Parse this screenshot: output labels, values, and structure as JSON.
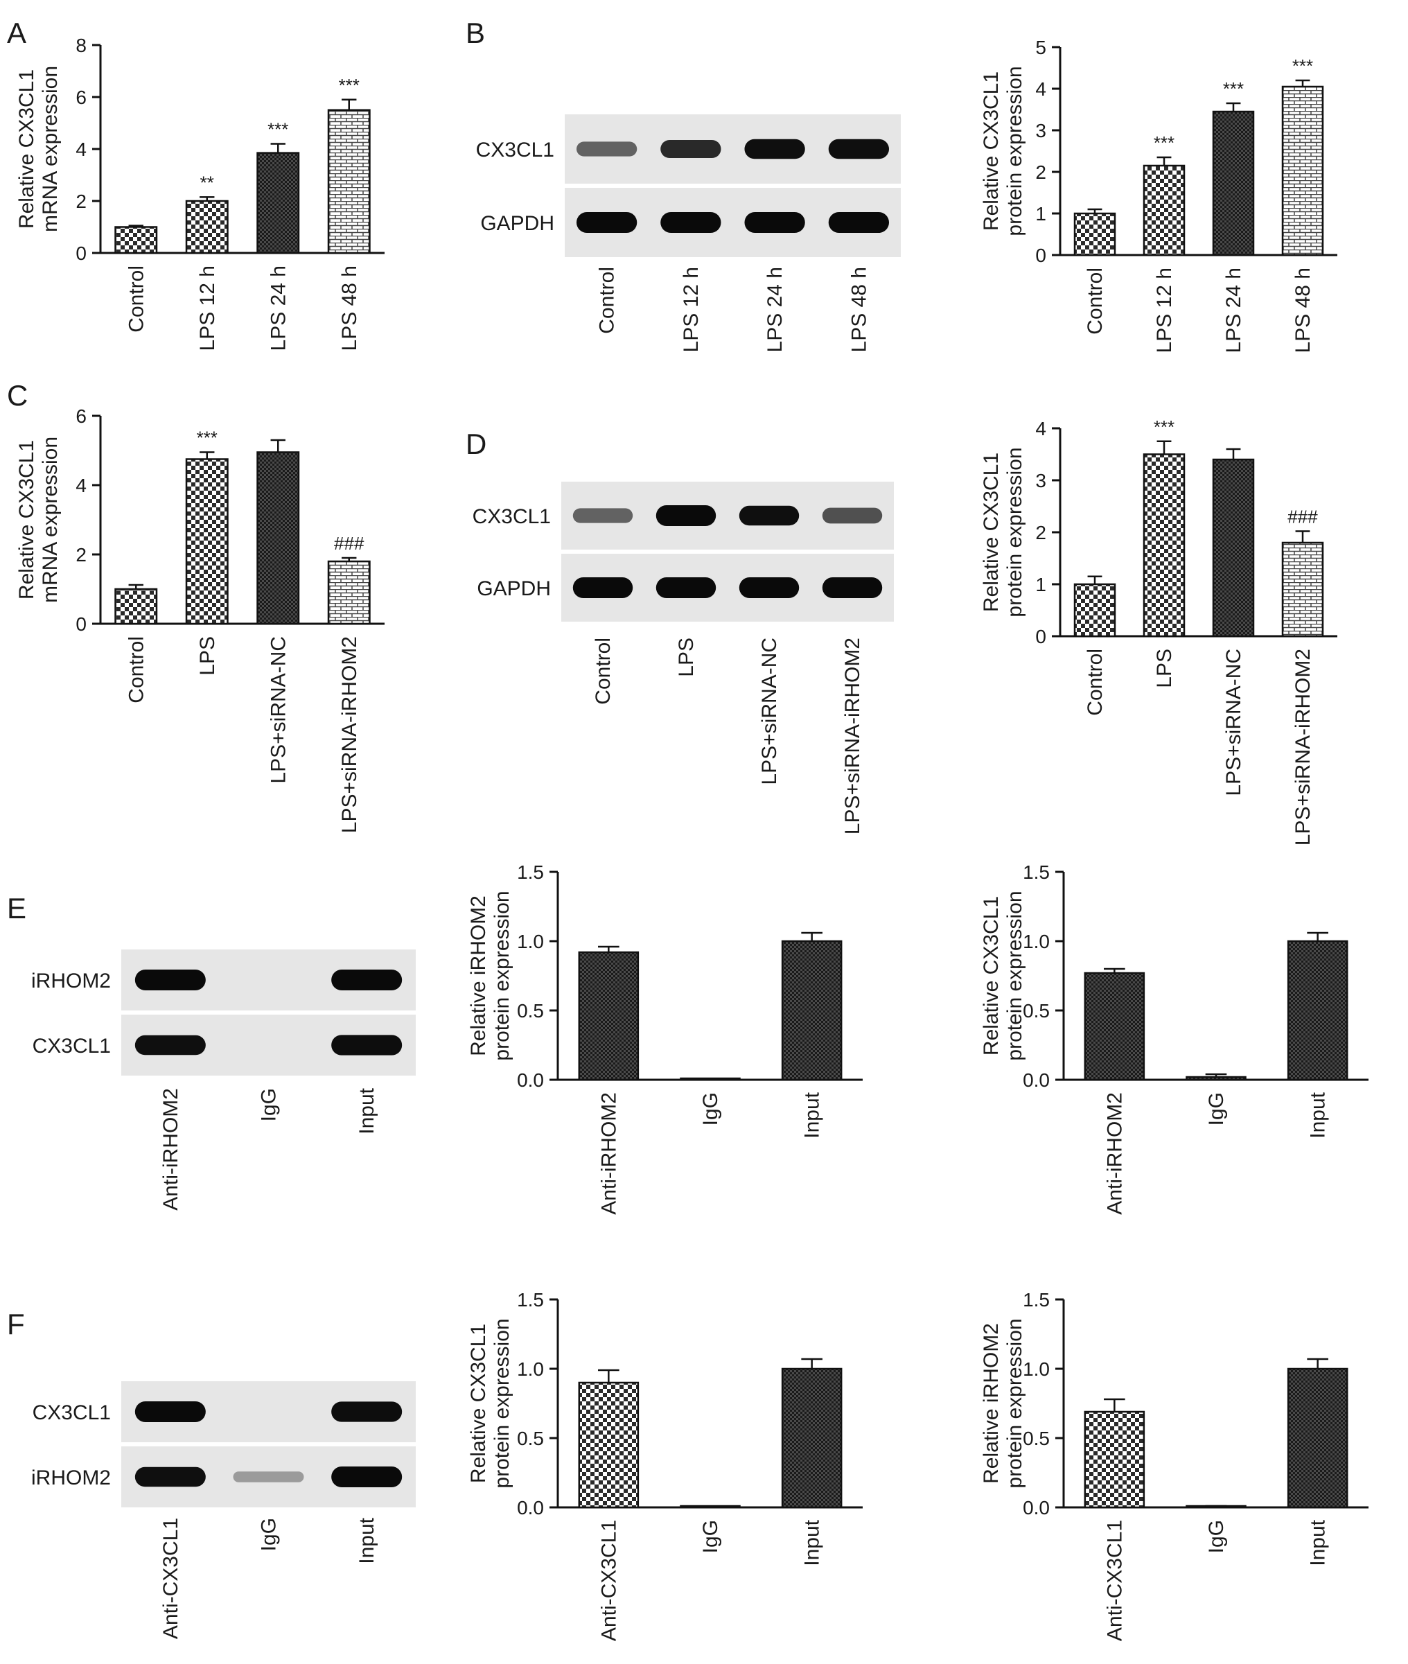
{
  "panels": [
    {
      "id": "A",
      "letter": "A",
      "type": "bar",
      "yLabel": [
        "Relative CX3CL1",
        "mRNA expression"
      ],
      "ylim": [
        0,
        8
      ],
      "ticks": [
        "0",
        "2",
        "4",
        "6",
        "8"
      ],
      "categories": [
        "Control",
        "LPS 12 h",
        "LPS 24 h",
        "LPS 48 h"
      ],
      "values": [
        1.0,
        2.0,
        3.85,
        5.5
      ],
      "errors": [
        0.05,
        0.15,
        0.35,
        0.4
      ],
      "sig": [
        "",
        "**",
        "***",
        "***"
      ],
      "patterns": [
        "check",
        "check",
        "dense",
        "brick"
      ]
    },
    {
      "id": "B",
      "letter": "B",
      "type": "bar",
      "yLabel": [
        "Relative CX3CL1",
        "protein expression"
      ],
      "ylim": [
        0,
        5
      ],
      "ticks": [
        "0",
        "1",
        "2",
        "3",
        "4",
        "5"
      ],
      "categories": [
        "Control",
        "LPS 12 h",
        "LPS 24 h",
        "LPS 48 h"
      ],
      "values": [
        1.0,
        2.15,
        3.45,
        4.05
      ],
      "errors": [
        0.1,
        0.2,
        0.2,
        0.15
      ],
      "sig": [
        "",
        "***",
        "***",
        "***"
      ],
      "patterns": [
        "check",
        "check",
        "dense",
        "brick"
      ]
    },
    {
      "id": "C",
      "letter": "C",
      "type": "bar",
      "yLabel": [
        "Relative CX3CL1",
        "mRNA expression"
      ],
      "ylim": [
        0,
        6
      ],
      "ticks": [
        "0",
        "2",
        "4",
        "6"
      ],
      "categories": [
        "Control",
        "LPS",
        "LPS+siRNA-NC",
        "LPS+siRNA-iRHOM2"
      ],
      "values": [
        1.0,
        4.75,
        4.95,
        1.8
      ],
      "errors": [
        0.12,
        0.2,
        0.35,
        0.1
      ],
      "sig": [
        "",
        "***",
        "",
        "###"
      ],
      "patterns": [
        "check",
        "check",
        "dense",
        "brick"
      ]
    },
    {
      "id": "D",
      "letter": "D",
      "type": "bar",
      "yLabel": [
        "Relative CX3CL1",
        "protein expression"
      ],
      "ylim": [
        0,
        4
      ],
      "ticks": [
        "0",
        "1",
        "2",
        "3",
        "4"
      ],
      "categories": [
        "Control",
        "LPS",
        "LPS+siRNA-NC",
        "LPS+siRNA-iRHOM2"
      ],
      "values": [
        1.0,
        3.5,
        3.4,
        1.8
      ],
      "errors": [
        0.15,
        0.25,
        0.2,
        0.22
      ],
      "sig": [
        "",
        "***",
        "",
        "###"
      ],
      "patterns": [
        "check",
        "check",
        "dense",
        "brick"
      ]
    },
    {
      "id": "E1",
      "letter": "",
      "type": "bar",
      "yLabel": [
        "Relative iRHOM2",
        "protein expression"
      ],
      "ylim": [
        0,
        1.5
      ],
      "ticks": [
        "0.0",
        "0.5",
        "1.0",
        "1.5"
      ],
      "categories": [
        "Anti-iRHOM2",
        "IgG",
        "Input"
      ],
      "values": [
        0.92,
        0.0,
        1.0
      ],
      "errors": [
        0.04,
        0.0,
        0.06
      ],
      "sig": [
        "",
        "",
        ""
      ],
      "patterns": [
        "dense",
        "dense",
        "dense"
      ]
    },
    {
      "id": "E2",
      "letter": "",
      "type": "bar",
      "yLabel": [
        "Relative CX3CL1",
        "protein expression"
      ],
      "ylim": [
        0,
        1.5
      ],
      "ticks": [
        "0.0",
        "0.5",
        "1.0",
        "1.5"
      ],
      "categories": [
        "Anti-iRHOM2",
        "IgG",
        "Input"
      ],
      "values": [
        0.77,
        0.02,
        1.0
      ],
      "errors": [
        0.03,
        0.02,
        0.06
      ],
      "sig": [
        "",
        "",
        ""
      ],
      "patterns": [
        "dense",
        "dense",
        "dense"
      ]
    },
    {
      "id": "F1",
      "letter": "",
      "type": "bar",
      "yLabel": [
        "Relative CX3CL1",
        "protein expression"
      ],
      "ylim": [
        0,
        1.5
      ],
      "ticks": [
        "0.0",
        "0.5",
        "1.0",
        "1.5"
      ],
      "categories": [
        "Anti-CX3CL1",
        "IgG",
        "Input"
      ],
      "values": [
        0.9,
        0.0,
        1.0
      ],
      "errors": [
        0.09,
        0.0,
        0.07
      ],
      "sig": [
        "",
        "",
        ""
      ],
      "patterns": [
        "check",
        "check",
        "dense"
      ]
    },
    {
      "id": "F2",
      "letter": "",
      "type": "bar",
      "yLabel": [
        "Relative iRHOM2",
        "protein expression"
      ],
      "ylim": [
        0,
        1.5
      ],
      "ticks": [
        "0.0",
        "0.5",
        "1.0",
        "1.5"
      ],
      "categories": [
        "Anti-CX3CL1",
        "IgG",
        "Input"
      ],
      "values": [
        0.69,
        0.0,
        1.0
      ],
      "errors": [
        0.09,
        0.01,
        0.07
      ],
      "sig": [
        "",
        "",
        ""
      ],
      "patterns": [
        "check",
        "check",
        "dense"
      ]
    }
  ],
  "blots": [
    {
      "id": "blotB",
      "rows": [
        {
          "label": "CX3CL1",
          "intensity": [
            0.45,
            0.75,
            0.9,
            0.9
          ]
        },
        {
          "label": "GAPDH",
          "intensity": [
            1.0,
            1.0,
            1.0,
            1.0
          ]
        }
      ],
      "lanes": [
        "Control",
        "LPS 12 h",
        "LPS 24 h",
        "LPS 48 h"
      ]
    },
    {
      "id": "blotD",
      "letter": "D",
      "rows": [
        {
          "label": "CX3CL1",
          "intensity": [
            0.45,
            1.0,
            0.9,
            0.55
          ]
        },
        {
          "label": "GAPDH",
          "intensity": [
            1.0,
            1.0,
            1.0,
            1.0
          ]
        }
      ],
      "lanes": [
        "Control",
        "LPS",
        "LPS+siRNA-NC",
        "LPS+siRNA-iRHOM2"
      ]
    },
    {
      "id": "blotE",
      "letter": "E",
      "rows": [
        {
          "label": "iRHOM2",
          "intensity": [
            1.0,
            0.0,
            1.0
          ]
        },
        {
          "label": "CX3CL1",
          "intensity": [
            0.9,
            0.0,
            0.95
          ]
        }
      ],
      "lanes": [
        "Anti-iRHOM2",
        "IgG",
        "Input"
      ]
    },
    {
      "id": "blotF",
      "letter": "F",
      "rows": [
        {
          "label": "CX3CL1",
          "intensity": [
            1.0,
            0.0,
            0.95
          ]
        },
        {
          "label": "iRHOM2",
          "intensity": [
            0.9,
            0.1,
            1.0
          ]
        }
      ],
      "lanes": [
        "Anti-CX3CL1",
        "IgG",
        "Input"
      ]
    }
  ],
  "chart_data": [
    {
      "panel": "A",
      "type": "bar",
      "categories": [
        "Control",
        "LPS 12 h",
        "LPS 24 h",
        "LPS 48 h"
      ],
      "values": [
        1.0,
        2.0,
        3.85,
        5.5
      ],
      "ylabel": "Relative CX3CL1 mRNA expression",
      "ylim": [
        0,
        8
      ]
    },
    {
      "panel": "B",
      "type": "bar",
      "categories": [
        "Control",
        "LPS 12 h",
        "LPS 24 h",
        "LPS 48 h"
      ],
      "values": [
        1.0,
        2.15,
        3.45,
        4.05
      ],
      "ylabel": "Relative CX3CL1 protein expression",
      "ylim": [
        0,
        5
      ]
    },
    {
      "panel": "C",
      "type": "bar",
      "categories": [
        "Control",
        "LPS",
        "LPS+siRNA-NC",
        "LPS+siRNA-iRHOM2"
      ],
      "values": [
        1.0,
        4.75,
        4.95,
        1.8
      ],
      "ylabel": "Relative CX3CL1 mRNA expression",
      "ylim": [
        0,
        6
      ]
    },
    {
      "panel": "D",
      "type": "bar",
      "categories": [
        "Control",
        "LPS",
        "LPS+siRNA-NC",
        "LPS+siRNA-iRHOM2"
      ],
      "values": [
        1.0,
        3.5,
        3.4,
        1.8
      ],
      "ylabel": "Relative CX3CL1 protein expression",
      "ylim": [
        0,
        4
      ]
    },
    {
      "panel": "E",
      "type": "bar",
      "categories": [
        "Anti-iRHOM2",
        "IgG",
        "Input"
      ],
      "values": [
        0.92,
        0.0,
        1.0
      ],
      "ylabel": "Relative iRHOM2 protein expression",
      "ylim": [
        0,
        1.5
      ]
    },
    {
      "panel": "E",
      "type": "bar",
      "categories": [
        "Anti-iRHOM2",
        "IgG",
        "Input"
      ],
      "values": [
        0.77,
        0.02,
        1.0
      ],
      "ylabel": "Relative CX3CL1 protein expression",
      "ylim": [
        0,
        1.5
      ]
    },
    {
      "panel": "F",
      "type": "bar",
      "categories": [
        "Anti-CX3CL1",
        "IgG",
        "Input"
      ],
      "values": [
        0.9,
        0.0,
        1.0
      ],
      "ylabel": "Relative CX3CL1 protein expression",
      "ylim": [
        0,
        1.5
      ]
    },
    {
      "panel": "F",
      "type": "bar",
      "categories": [
        "Anti-CX3CL1",
        "IgG",
        "Input"
      ],
      "values": [
        0.69,
        0.0,
        1.0
      ],
      "ylabel": "Relative iRHOM2 protein expression",
      "ylim": [
        0,
        1.5
      ]
    }
  ]
}
